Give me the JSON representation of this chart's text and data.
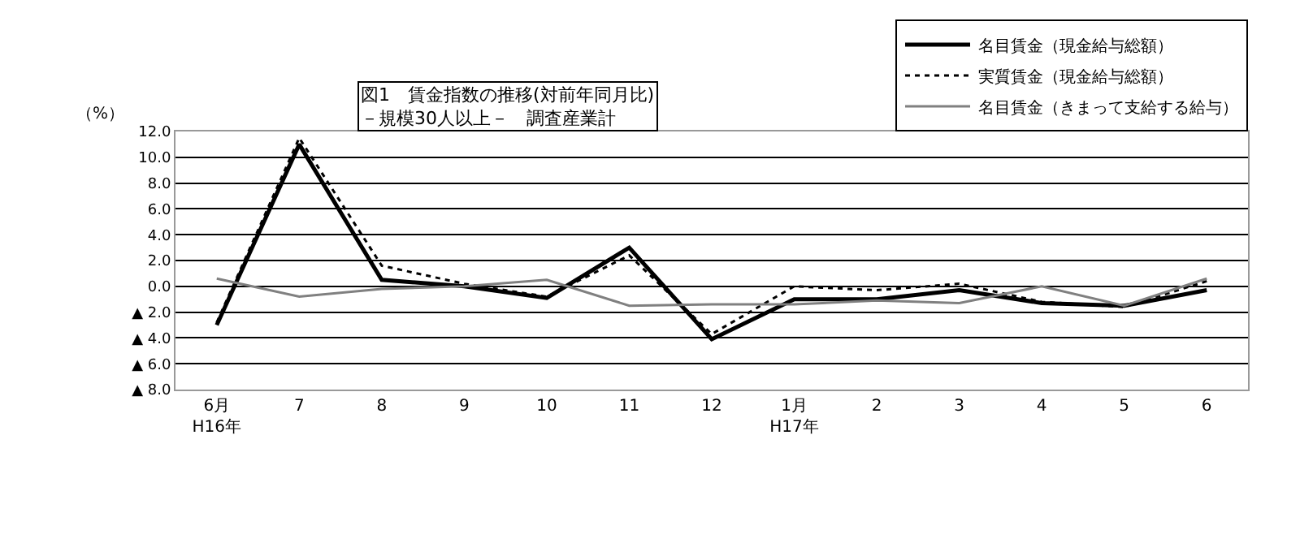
{
  "chart_data": {
    "type": "line",
    "title": "図1　賃金指数の推移(対前年同月比)",
    "subtitle": "－規模30人以上－　調査産業計",
    "ylabel": "（%）",
    "categories": [
      "6月\nH16年",
      "7",
      "8",
      "9",
      "10",
      "11",
      "12",
      "1月\nH17年",
      "2",
      "3",
      "4",
      "5",
      "6"
    ],
    "series": [
      {
        "name": "名目賃金（現金給与総額）",
        "color": "#000000",
        "line_style": "solid",
        "values": [
          -3.0,
          11.0,
          0.5,
          0.0,
          -0.9,
          3.0,
          -4.1,
          -1.0,
          -1.0,
          -0.3,
          -1.3,
          -1.5,
          -0.3
        ]
      },
      {
        "name": "実質賃金（現金給与総額）",
        "color": "#000000",
        "line_style": "dotted",
        "values": [
          -2.8,
          11.5,
          1.6,
          0.2,
          -0.8,
          2.4,
          -3.7,
          0.0,
          -0.3,
          0.2,
          -1.2,
          -1.6,
          0.4
        ]
      },
      {
        "name": "名目賃金（きまって支給する給与）",
        "color": "#808080",
        "line_style": "solid",
        "values": [
          0.6,
          -0.8,
          -0.2,
          0.0,
          0.5,
          -1.5,
          -1.4,
          -1.4,
          -1.1,
          -1.3,
          0.0,
          -1.5,
          0.6
        ]
      }
    ],
    "ylim": [
      -8,
      12
    ],
    "yticks": [
      {
        "value": 12,
        "label": "12.0"
      },
      {
        "value": 10,
        "label": "10.0"
      },
      {
        "value": 8,
        "label": "8.0"
      },
      {
        "value": 6,
        "label": "6.0"
      },
      {
        "value": 4,
        "label": "4.0"
      },
      {
        "value": 2,
        "label": "2.0"
      },
      {
        "value": 0,
        "label": "0.0"
      },
      {
        "value": -2,
        "label": "▲ 2.0"
      },
      {
        "value": -4,
        "label": "▲ 4.0"
      },
      {
        "value": -6,
        "label": "▲ 6.0"
      },
      {
        "value": -8,
        "label": "▲ 8.0"
      }
    ],
    "grid": "y",
    "legend": "top right",
    "marker": "none"
  }
}
